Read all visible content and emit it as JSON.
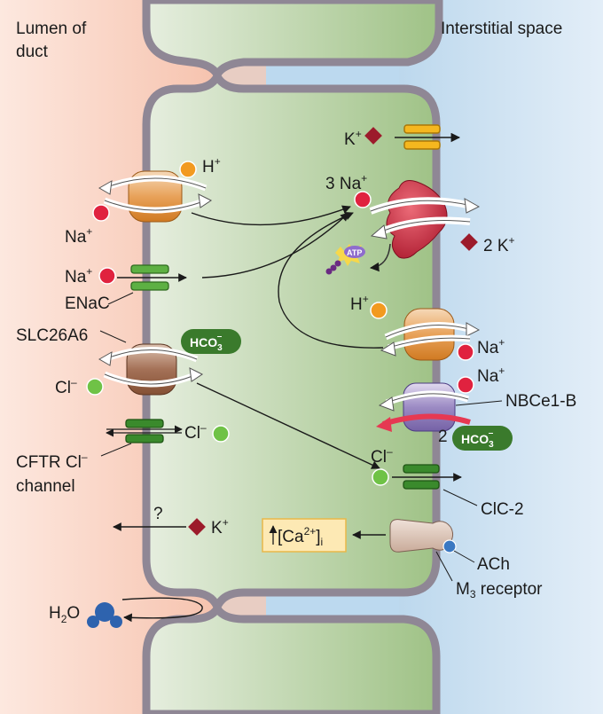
{
  "regions": {
    "lumen": "Lumen of\nduct",
    "interstitial": "Interstitial space"
  },
  "ions": {
    "k": "K",
    "na": "Na",
    "h": "H",
    "cl": "Cl",
    "three_na": "3 Na",
    "two_k": "2 K",
    "plus": "+",
    "minus": "–",
    "two": "2",
    "h2o_h": "H",
    "h2o_sub": "2",
    "h2o_o": "O",
    "question": "?",
    "atp": "ATP"
  },
  "bicarbonate": {
    "base": "HCO",
    "sub": "3",
    "sup": "–"
  },
  "transporters": {
    "enac": "ENaC",
    "slc26a6": "SLC26A6",
    "cftr": "CFTR Cl",
    "cftr_line2": "channel",
    "nbce1b": "NBCe1-B",
    "clc2": "ClC-2"
  },
  "signaling": {
    "ca_prefix": "[Ca",
    "ca_sup": "2+",
    "ca_suffix": "]",
    "ca_sub": "i",
    "ach": "ACh",
    "m3": "M",
    "m3_sub": "3",
    "m3_suffix": " receptor"
  },
  "colors": {
    "lumen_bg": "#f8c9b5",
    "interstitial_bg": "#c8def0",
    "cell_fill": "#b9d2a6",
    "membrane": "#8f8795",
    "na_dot": "#e0223f",
    "k_diamond": "#9c1b2b",
    "h_dot": "#f29a20",
    "cl_dot": "#6fc246",
    "hco3_pill": "#3a7a2c",
    "pump": "#c8283e",
    "exchanger_orange": "#e28a2b",
    "slc_brown": "#8c5a3e",
    "channel_green": "#4a9a34",
    "nbce_purple": "#8c78b4",
    "ca_box": "#fde9b4"
  }
}
